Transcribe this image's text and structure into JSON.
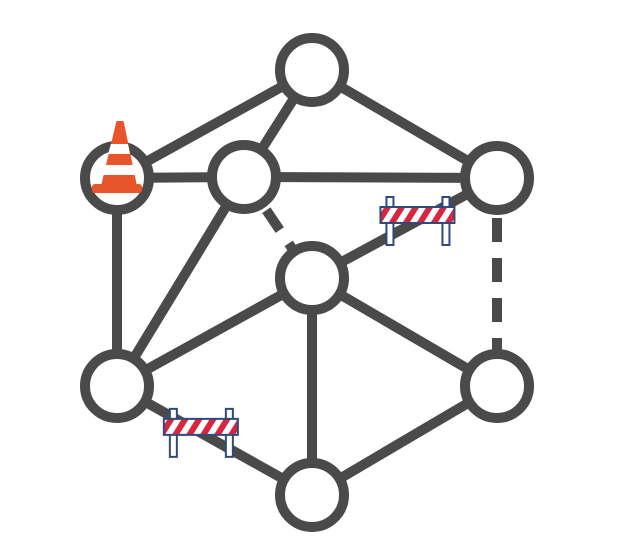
{
  "graph": {
    "colors": {
      "edge": "#4a4a4a",
      "node_stroke": "#4a4a4a",
      "node_fill": "#ffffff",
      "cone_orange": "#e8552b",
      "cone_white": "#ffffff",
      "barrier_red": "#d8263f",
      "barrier_white": "#ffffff",
      "barrier_outline": "#2f4a7a"
    },
    "nodes": [
      {
        "id": "top"
      },
      {
        "id": "upper-left",
        "marker": "traffic-cone-icon"
      },
      {
        "id": "upper-inner"
      },
      {
        "id": "upper-right"
      },
      {
        "id": "center"
      },
      {
        "id": "lower-left"
      },
      {
        "id": "lower-right"
      },
      {
        "id": "bottom"
      }
    ],
    "edges": [
      {
        "from": "top",
        "to": "upper-left",
        "style": "solid"
      },
      {
        "from": "top",
        "to": "upper-inner",
        "style": "solid"
      },
      {
        "from": "top",
        "to": "upper-right",
        "style": "solid"
      },
      {
        "from": "upper-left",
        "to": "upper-inner",
        "style": "solid"
      },
      {
        "from": "upper-left",
        "to": "lower-left",
        "style": "solid"
      },
      {
        "from": "upper-inner",
        "to": "upper-right",
        "style": "solid"
      },
      {
        "from": "upper-inner",
        "to": "lower-left",
        "style": "solid"
      },
      {
        "from": "upper-inner",
        "to": "center",
        "style": "dashed"
      },
      {
        "from": "upper-right",
        "to": "center",
        "style": "solid",
        "marker": "road-barrier-icon"
      },
      {
        "from": "upper-right",
        "to": "lower-right",
        "style": "dashed"
      },
      {
        "from": "center",
        "to": "lower-left",
        "style": "solid"
      },
      {
        "from": "center",
        "to": "lower-right",
        "style": "solid"
      },
      {
        "from": "center",
        "to": "bottom",
        "style": "solid"
      },
      {
        "from": "lower-left",
        "to": "bottom",
        "style": "solid",
        "marker": "road-barrier-icon"
      },
      {
        "from": "lower-right",
        "to": "bottom",
        "style": "solid"
      }
    ]
  }
}
